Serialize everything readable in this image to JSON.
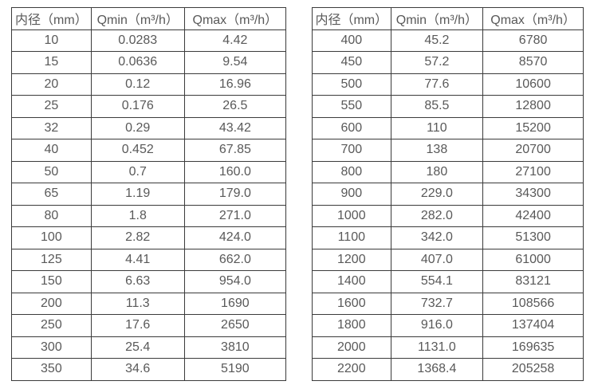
{
  "page": {
    "background_color": "#ffffff",
    "text_color": "#595959",
    "border_color": "#3b3b3b"
  },
  "tables": [
    {
      "name": "small-diameters",
      "headers": [
        "内径（mm）",
        "Qmin（m³/h）",
        "Qmax（m³/h）"
      ],
      "rows": [
        [
          "10",
          "0.0283",
          "4.42"
        ],
        [
          "15",
          "0.0636",
          "9.54"
        ],
        [
          "20",
          "0.12",
          "16.96"
        ],
        [
          "25",
          "0.176",
          "26.5"
        ],
        [
          "32",
          "0.29",
          "43.42"
        ],
        [
          "40",
          "0.452",
          "67.85"
        ],
        [
          "50",
          "0.7",
          "160.0"
        ],
        [
          "65",
          "1.19",
          "179.0"
        ],
        [
          "80",
          "1.8",
          "271.0"
        ],
        [
          "100",
          "2.82",
          "424.0"
        ],
        [
          "125",
          "4.41",
          "662.0"
        ],
        [
          "150",
          "6.63",
          "954.0"
        ],
        [
          "200",
          "11.3",
          "1690"
        ],
        [
          "250",
          "17.6",
          "2650"
        ],
        [
          "300",
          "25.4",
          "3810"
        ],
        [
          "350",
          "34.6",
          "5190"
        ]
      ]
    },
    {
      "name": "large-diameters",
      "headers": [
        "内径（mm）",
        "Qmin（m³/h）",
        "Qmax（m³/h）"
      ],
      "rows": [
        [
          "400",
          "45.2",
          "6780"
        ],
        [
          "450",
          "57.2",
          "8570"
        ],
        [
          "500",
          "77.6",
          "10600"
        ],
        [
          "550",
          "85.5",
          "12800"
        ],
        [
          "600",
          "110",
          "15200"
        ],
        [
          "700",
          "138",
          "20700"
        ],
        [
          "800",
          "180",
          "27100"
        ],
        [
          "900",
          "229.0",
          "34300"
        ],
        [
          "1000",
          "282.0",
          "42400"
        ],
        [
          "1100",
          "342.0",
          "51300"
        ],
        [
          "1200",
          "407.0",
          "61000"
        ],
        [
          "1400",
          "554.1",
          "83121"
        ],
        [
          "1600",
          "732.7",
          "108566"
        ],
        [
          "1800",
          "916.0",
          "137404"
        ],
        [
          "2000",
          "1131.0",
          "169635"
        ],
        [
          "2200",
          "1368.4",
          "205258"
        ]
      ]
    }
  ]
}
